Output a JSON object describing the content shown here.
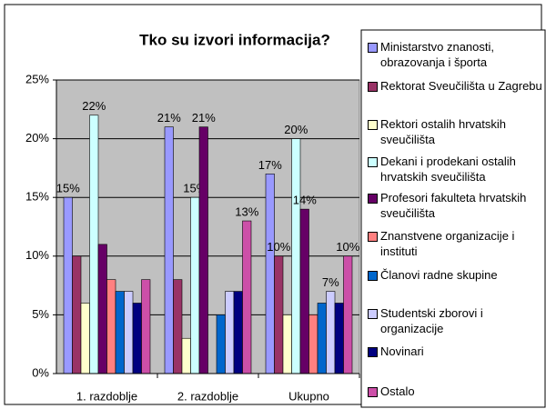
{
  "chart_data": {
    "type": "bar",
    "title": "Tko su izvori informacija?",
    "categories": [
      "1. razdoblje",
      "2. razdoblje",
      "Ukupno"
    ],
    "ylim": [
      0,
      25
    ],
    "yticks": [
      {
        "value": 0,
        "label": "0%"
      },
      {
        "value": 5,
        "label": "5%"
      },
      {
        "value": 10,
        "label": "10%"
      },
      {
        "value": 15,
        "label": "15%"
      },
      {
        "value": 20,
        "label": "20%"
      },
      {
        "value": 25,
        "label": "25%"
      }
    ],
    "grid": true,
    "legend": "right",
    "series": [
      {
        "name": "Ministarstvo znanosti, obrazovanja i športa",
        "color": "#9999ff",
        "values": [
          15,
          21,
          17
        ],
        "value_labels": [
          "15%",
          "21%",
          "17%"
        ]
      },
      {
        "name": "Rektorat Sveučilišta u Zagrebu",
        "color": "#993366",
        "values": [
          10,
          8,
          10
        ],
        "value_labels": [
          null,
          null,
          "10%"
        ]
      },
      {
        "name": "Rektori ostalih hrvatskih sveučilišta",
        "color": "#ffffcc",
        "values": [
          6,
          3,
          5
        ]
      },
      {
        "name": "Dekani i prodekani ostalih hrvatskih sveučilišta",
        "color": "#ccffff",
        "values": [
          22,
          15,
          20
        ],
        "value_labels": [
          "22%",
          "15%",
          "20%"
        ]
      },
      {
        "name": "Profesori fakulteta hrvatskih sveučilišta",
        "color": "#660066",
        "values": [
          11,
          21,
          14
        ],
        "value_labels": [
          null,
          "21%",
          "14%"
        ]
      },
      {
        "name": "Znanstvene organizacije i instituti",
        "color": "#ff8080",
        "values": [
          8,
          0,
          5
        ]
      },
      {
        "name": "Članovi radne skupine",
        "color": "#0066cc",
        "values": [
          7,
          5,
          6
        ]
      },
      {
        "name": "Studentski zborovi i organizacije",
        "color": "#ccccff",
        "values": [
          7,
          7,
          7
        ],
        "value_labels": [
          null,
          null,
          "7%"
        ]
      },
      {
        "name": "Novinari",
        "color": "#000080",
        "values": [
          6,
          7,
          6
        ]
      },
      {
        "name": "Ostalo",
        "color": "#cc4fa8",
        "values": [
          8,
          13,
          10
        ],
        "value_labels": [
          null,
          "13%",
          "10%"
        ]
      }
    ]
  }
}
